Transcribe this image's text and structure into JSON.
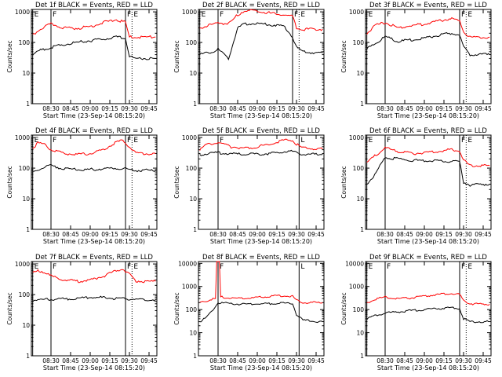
{
  "colors": {
    "events": "#000000",
    "lld": "#ff0000",
    "axes": "#000000",
    "background": "#ffffff"
  },
  "common": {
    "ylabel": "Counts/sec",
    "xlabel": "Start Time (23-Sep-14 08:15:20)",
    "xticks": [
      "08:30",
      "08:45",
      "09:00",
      "09:15",
      "09:30",
      "09:45"
    ]
  },
  "chart_data": [
    {
      "type": "line",
      "title": "Det 1f BLACK = Events, RED = LLD",
      "yscale": "log",
      "ylim": [
        1,
        1200
      ],
      "yticks": [
        "1",
        "10",
        "100",
        "1000"
      ],
      "markers": [
        {
          "label": "E",
          "x": "08:16"
        },
        {
          "label": "F",
          "x": "08:30"
        },
        {
          "label": "F",
          "x": "09:27"
        },
        {
          "label": "E",
          "x": "09:32"
        }
      ],
      "series": [
        {
          "name": "LLD",
          "x": [
            "08:16",
            "08:22",
            "08:30",
            "08:40",
            "08:50",
            "09:00",
            "09:10",
            "09:20",
            "09:27",
            "09:30",
            "09:35",
            "09:45",
            "09:50"
          ],
          "values": [
            170,
            280,
            400,
            300,
            290,
            330,
            450,
            550,
            450,
            150,
            150,
            150,
            150
          ]
        },
        {
          "name": "Events",
          "x": [
            "08:16",
            "08:22",
            "08:30",
            "08:40",
            "08:50",
            "09:00",
            "09:10",
            "09:20",
            "09:27",
            "09:30",
            "09:35",
            "09:45",
            "09:50"
          ],
          "values": [
            40,
            55,
            70,
            85,
            100,
            115,
            130,
            150,
            140,
            35,
            30,
            30,
            30
          ]
        }
      ]
    },
    {
      "type": "line",
      "title": "Det 2f BLACK = Events, RED = LLD",
      "yscale": "log",
      "ylim": [
        1,
        1200
      ],
      "yticks": [
        "1",
        "10",
        "100",
        "1000"
      ],
      "markers": [
        {
          "label": "E",
          "x": "08:16"
        },
        {
          "label": "F",
          "x": "08:30"
        },
        {
          "label": "F",
          "x": "09:27"
        },
        {
          "label": "E",
          "x": "09:32"
        }
      ],
      "series": [
        {
          "name": "LLD",
          "x": [
            "08:16",
            "08:22",
            "08:30",
            "08:38",
            "08:45",
            "08:50",
            "09:00",
            "09:10",
            "09:20",
            "09:27",
            "09:30",
            "09:35",
            "09:45",
            "09:50"
          ],
          "values": [
            300,
            350,
            450,
            400,
            800,
            1100,
            1100,
            900,
            800,
            700,
            300,
            270,
            270,
            270
          ]
        },
        {
          "name": "Events",
          "x": [
            "08:16",
            "08:22",
            "08:30",
            "08:38",
            "08:45",
            "08:50",
            "09:00",
            "09:10",
            "09:20",
            "09:27",
            "09:30",
            "09:35",
            "09:45",
            "09:50"
          ],
          "values": [
            40,
            45,
            60,
            30,
            300,
            400,
            420,
            380,
            350,
            150,
            70,
            50,
            45,
            45
          ]
        }
      ]
    },
    {
      "type": "line",
      "title": "Det 3f BLACK = Events, RED = LLD",
      "yscale": "log",
      "ylim": [
        1,
        1200
      ],
      "yticks": [
        "1",
        "10",
        "100",
        "1000"
      ],
      "markers": [
        {
          "label": "E",
          "x": "08:16"
        },
        {
          "label": "F",
          "x": "08:30"
        },
        {
          "label": "F",
          "x": "09:27"
        },
        {
          "label": "E",
          "x": "09:32"
        }
      ],
      "series": [
        {
          "name": "LLD",
          "x": [
            "08:16",
            "08:22",
            "08:30",
            "08:40",
            "08:50",
            "09:00",
            "09:10",
            "09:20",
            "09:27",
            "09:30",
            "09:35",
            "09:45",
            "09:50"
          ],
          "values": [
            200,
            350,
            450,
            300,
            350,
            400,
            500,
            600,
            500,
            220,
            150,
            150,
            150
          ]
        },
        {
          "name": "Events",
          "x": [
            "08:16",
            "08:22",
            "08:30",
            "08:40",
            "08:50",
            "09:00",
            "09:10",
            "09:20",
            "09:27",
            "09:30",
            "09:35",
            "09:45",
            "09:50"
          ],
          "values": [
            60,
            90,
            150,
            110,
            120,
            140,
            170,
            200,
            180,
            70,
            40,
            40,
            40
          ]
        }
      ]
    },
    {
      "type": "line",
      "title": "Det 4f BLACK = Events, RED = LLD",
      "yscale": "log",
      "ylim": [
        1,
        1200
      ],
      "yticks": [
        "1",
        "10",
        "100",
        "1000"
      ],
      "markers": [
        {
          "label": "E",
          "x": "08:16"
        },
        {
          "label": "F",
          "x": "08:30"
        },
        {
          "label": "F",
          "x": "09:27"
        },
        {
          "label": "E",
          "x": "09:32"
        }
      ],
      "series": [
        {
          "name": "LLD",
          "x": [
            "08:16",
            "08:20",
            "08:25",
            "08:30",
            "08:40",
            "08:50",
            "09:00",
            "09:10",
            "09:20",
            "09:25",
            "09:30",
            "09:35",
            "09:45",
            "09:50"
          ],
          "values": [
            450,
            650,
            600,
            400,
            300,
            280,
            300,
            400,
            700,
            800,
            500,
            300,
            300,
            300
          ]
        },
        {
          "name": "Events",
          "x": [
            "08:16",
            "08:25",
            "08:30",
            "08:40",
            "08:50",
            "09:00",
            "09:10",
            "09:20",
            "09:27",
            "09:35",
            "09:45",
            "09:50"
          ],
          "values": [
            75,
            110,
            120,
            95,
            90,
            90,
            95,
            100,
            95,
            85,
            85,
            85
          ]
        }
      ]
    },
    {
      "type": "line",
      "title": "Det 5f BLACK = Events, RED = LLD",
      "yscale": "log",
      "ylim": [
        1,
        1200
      ],
      "yticks": [
        "1",
        "10",
        "100",
        "1000"
      ],
      "markers": [
        {
          "label": "F",
          "x": "08:30"
        },
        {
          "label": "L",
          "x": "09:32"
        }
      ],
      "series": [
        {
          "name": "LLD",
          "x": [
            "08:16",
            "08:22",
            "08:30",
            "08:40",
            "08:50",
            "09:00",
            "09:10",
            "09:20",
            "09:27",
            "09:30",
            "09:35",
            "09:45",
            "09:50"
          ],
          "values": [
            400,
            600,
            700,
            500,
            450,
            500,
            600,
            800,
            850,
            600,
            450,
            420,
            420
          ]
        },
        {
          "name": "Events",
          "x": [
            "08:16",
            "08:22",
            "08:30",
            "08:40",
            "08:50",
            "09:00",
            "09:10",
            "09:20",
            "09:27",
            "09:30",
            "09:35",
            "09:45",
            "09:50"
          ],
          "values": [
            270,
            300,
            320,
            290,
            280,
            290,
            300,
            350,
            350,
            320,
            290,
            280,
            280
          ]
        }
      ]
    },
    {
      "type": "line",
      "title": "Det 6f BLACK = Events, RED = LLD",
      "yscale": "log",
      "ylim": [
        1,
        1200
      ],
      "yticks": [
        "1",
        "10",
        "100",
        "1000"
      ],
      "markers": [
        {
          "label": "E",
          "x": "08:16"
        },
        {
          "label": "F",
          "x": "08:30"
        },
        {
          "label": "F",
          "x": "09:27"
        },
        {
          "label": "E",
          "x": "09:32"
        }
      ],
      "series": [
        {
          "name": "LLD",
          "x": [
            "08:16",
            "08:22",
            "08:30",
            "08:40",
            "08:50",
            "09:00",
            "09:10",
            "09:20",
            "09:27",
            "09:30",
            "09:35",
            "09:45",
            "09:50"
          ],
          "values": [
            150,
            250,
            450,
            350,
            300,
            320,
            350,
            400,
            380,
            180,
            120,
            120,
            120
          ]
        },
        {
          "name": "Events",
          "x": [
            "08:16",
            "08:22",
            "08:30",
            "08:40",
            "08:50",
            "09:00",
            "09:10",
            "09:20",
            "09:27",
            "09:30",
            "09:35",
            "09:45",
            "09:50"
          ],
          "values": [
            30,
            60,
            220,
            200,
            180,
            175,
            175,
            170,
            160,
            35,
            28,
            30,
            30
          ]
        }
      ]
    },
    {
      "type": "line",
      "title": "Det 7f BLACK = Events, RED = LLD",
      "yscale": "log",
      "ylim": [
        1,
        1200
      ],
      "yticks": [
        "1",
        "10",
        "100",
        "1000"
      ],
      "markers": [
        {
          "label": "E",
          "x": "08:16"
        },
        {
          "label": "F",
          "x": "08:30"
        },
        {
          "label": "F",
          "x": "09:27"
        },
        {
          "label": "E",
          "x": "09:32"
        }
      ],
      "series": [
        {
          "name": "LLD",
          "x": [
            "08:16",
            "08:20",
            "08:25",
            "08:30",
            "08:40",
            "08:50",
            "09:00",
            "09:10",
            "09:20",
            "09:25",
            "09:30",
            "09:35",
            "09:45",
            "09:50"
          ],
          "values": [
            500,
            600,
            550,
            400,
            300,
            270,
            300,
            400,
            600,
            700,
            450,
            280,
            270,
            270
          ]
        },
        {
          "name": "Events",
          "x": [
            "08:16",
            "08:25",
            "08:30",
            "08:40",
            "08:50",
            "09:00",
            "09:10",
            "09:20",
            "09:27",
            "09:35",
            "09:45",
            "09:50"
          ],
          "values": [
            65,
            70,
            70,
            72,
            75,
            80,
            80,
            75,
            72,
            70,
            68,
            68
          ]
        }
      ]
    },
    {
      "type": "line",
      "title": "Det 8f BLACK = Events, RED = LLD",
      "yscale": "log",
      "ylim": [
        1,
        12000
      ],
      "yticks": [
        "1",
        "10",
        "100",
        "1000",
        "10000"
      ],
      "markers": [
        {
          "label": "F",
          "x": "08:30"
        },
        {
          "label": "L",
          "x": "09:32"
        }
      ],
      "series": [
        {
          "name": "LLD",
          "x": [
            "08:16",
            "08:22",
            "08:28",
            "08:29",
            "08:30",
            "08:31",
            "08:32",
            "08:40",
            "08:50",
            "09:00",
            "09:10",
            "09:20",
            "09:27",
            "09:30",
            "09:35",
            "09:45",
            "09:50"
          ],
          "values": [
            200,
            250,
            300,
            12000,
            12000,
            12000,
            350,
            320,
            300,
            330,
            380,
            400,
            380,
            250,
            200,
            200,
            200
          ]
        },
        {
          "name": "Events",
          "x": [
            "08:16",
            "08:22",
            "08:30",
            "08:40",
            "08:50",
            "09:00",
            "09:10",
            "09:20",
            "09:27",
            "09:30",
            "09:35",
            "09:45",
            "09:50"
          ],
          "values": [
            30,
            50,
            200,
            180,
            170,
            175,
            180,
            190,
            180,
            60,
            35,
            30,
            30
          ]
        }
      ]
    },
    {
      "type": "line",
      "title": "Det 9f BLACK = Events, RED = LLD",
      "yscale": "log",
      "ylim": [
        1,
        12000
      ],
      "yticks": [
        "1",
        "10",
        "100",
        "1000",
        "10000"
      ],
      "markers": [
        {
          "label": "E",
          "x": "08:16"
        },
        {
          "label": "F",
          "x": "08:30"
        },
        {
          "label": "F",
          "x": "09:27"
        },
        {
          "label": "E",
          "x": "09:32"
        }
      ],
      "series": [
        {
          "name": "LLD",
          "x": [
            "08:16",
            "08:22",
            "08:30",
            "08:40",
            "08:50",
            "09:00",
            "09:10",
            "09:20",
            "09:27",
            "09:30",
            "09:35",
            "09:45",
            "09:50"
          ],
          "values": [
            200,
            280,
            350,
            300,
            320,
            380,
            450,
            500,
            450,
            250,
            180,
            170,
            170
          ]
        },
        {
          "name": "Events",
          "x": [
            "08:16",
            "08:22",
            "08:30",
            "08:40",
            "08:50",
            "09:00",
            "09:10",
            "09:20",
            "09:27",
            "09:30",
            "09:35",
            "09:45",
            "09:50"
          ],
          "values": [
            40,
            55,
            70,
            80,
            90,
            100,
            110,
            120,
            110,
            40,
            30,
            30,
            30
          ]
        }
      ]
    }
  ]
}
